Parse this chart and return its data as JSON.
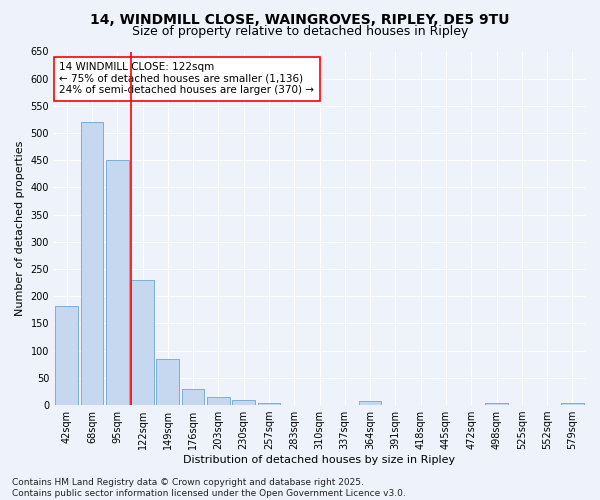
{
  "title": "14, WINDMILL CLOSE, WAINGROVES, RIPLEY, DE5 9TU",
  "subtitle": "Size of property relative to detached houses in Ripley",
  "xlabel": "Distribution of detached houses by size in Ripley",
  "ylabel": "Number of detached properties",
  "categories": [
    "42sqm",
    "68sqm",
    "95sqm",
    "122sqm",
    "149sqm",
    "176sqm",
    "203sqm",
    "230sqm",
    "257sqm",
    "283sqm",
    "310sqm",
    "337sqm",
    "364sqm",
    "391sqm",
    "418sqm",
    "445sqm",
    "472sqm",
    "498sqm",
    "525sqm",
    "552sqm",
    "579sqm"
  ],
  "values": [
    183,
    520,
    450,
    230,
    85,
    30,
    15,
    9,
    3,
    1,
    1,
    0,
    7,
    0,
    0,
    0,
    0,
    3,
    0,
    0,
    3
  ],
  "bar_color": "#c5d8f0",
  "bar_edge_color": "#7aafd4",
  "vline_x": 3,
  "vline_color": "red",
  "annotation_text": "14 WINDMILL CLOSE: 122sqm\n← 75% of detached houses are smaller (1,136)\n24% of semi-detached houses are larger (370) →",
  "annotation_box_color": "white",
  "annotation_box_edge_color": "red",
  "ylim": [
    0,
    650
  ],
  "yticks": [
    0,
    50,
    100,
    150,
    200,
    250,
    300,
    350,
    400,
    450,
    500,
    550,
    600,
    650
  ],
  "background_color": "#eef2fb",
  "grid_color": "white",
  "footer": "Contains HM Land Registry data © Crown copyright and database right 2025.\nContains public sector information licensed under the Open Government Licence v3.0.",
  "title_fontsize": 10,
  "subtitle_fontsize": 9,
  "xlabel_fontsize": 8,
  "ylabel_fontsize": 8,
  "tick_fontsize": 7,
  "annotation_fontsize": 7.5,
  "footer_fontsize": 6.5
}
